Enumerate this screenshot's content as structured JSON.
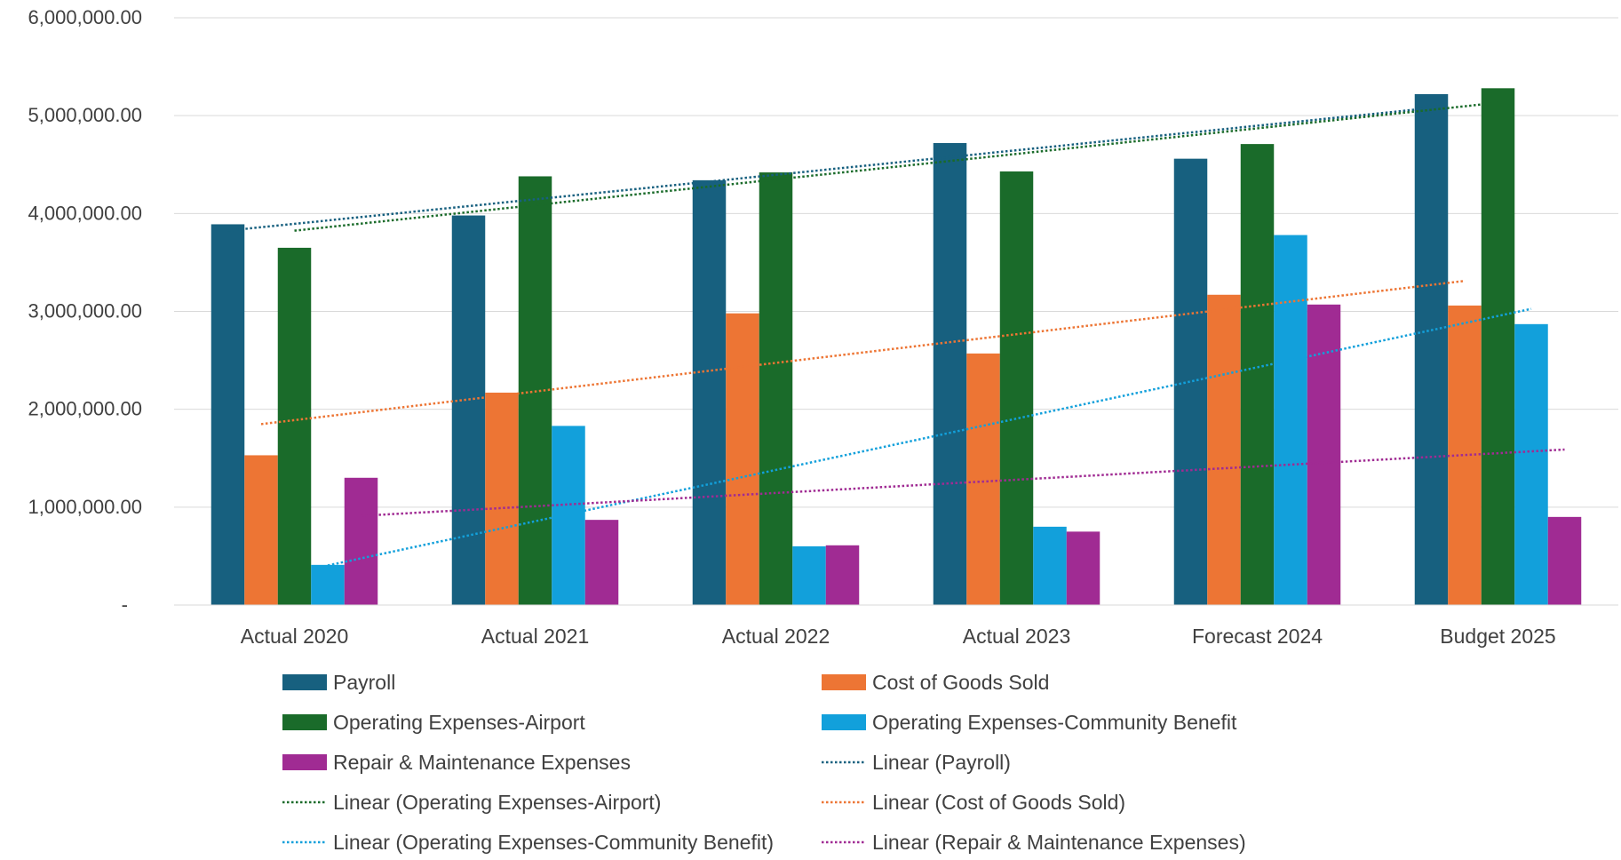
{
  "chart_data": {
    "type": "bar",
    "title": "",
    "xlabel": "",
    "ylabel": "",
    "ylim": [
      0,
      6000000
    ],
    "y_ticks": [
      0,
      1000000,
      2000000,
      3000000,
      4000000,
      5000000,
      6000000
    ],
    "y_tick_labels": [
      "-",
      "1,000,000.00",
      "2,000,000.00",
      "3,000,000.00",
      "4,000,000.00",
      "5,000,000.00",
      "6,000,000.00"
    ],
    "categories": [
      "Actual 2020",
      "Actual 2021",
      "Actual 2022",
      "Actual 2023",
      "Forecast 2024",
      "Budget 2025"
    ],
    "grid": "horizontal",
    "legend_position": "bottom",
    "series": [
      {
        "name": "Payroll",
        "color": "#17607F",
        "values": [
          3890000,
          3980000,
          4340000,
          4720000,
          4560000,
          5220000
        ]
      },
      {
        "name": "Cost of Goods Sold",
        "color": "#ED7534",
        "values": [
          1530000,
          2170000,
          2980000,
          2570000,
          3170000,
          3060000
        ]
      },
      {
        "name": "Operating Expenses-Airport",
        "color": "#1A6B2A",
        "values": [
          3650000,
          4380000,
          4420000,
          4430000,
          4710000,
          5280000
        ]
      },
      {
        "name": "Operating Expenses-Community Benefit",
        "color": "#12A0DB",
        "values": [
          410000,
          1830000,
          600000,
          800000,
          3780000,
          2870000
        ]
      },
      {
        "name": "Repair & Maintenance Expenses",
        "color": "#A02B93",
        "values": [
          1300000,
          870000,
          610000,
          750000,
          3070000,
          900000
        ]
      }
    ],
    "trendlines": [
      {
        "name": "Linear (Payroll)",
        "series": "Payroll",
        "type": "linear",
        "color": "#17607F"
      },
      {
        "name": "Linear (Operating Expenses-Airport)",
        "series": "Operating Expenses-Airport",
        "type": "linear",
        "color": "#1A6B2A"
      },
      {
        "name": "Linear (Cost of Goods Sold)",
        "series": "Cost of Goods Sold",
        "type": "linear",
        "color": "#ED7534"
      },
      {
        "name": "Linear (Operating Expenses-Community Benefit)",
        "series": "Operating Expenses-Community Benefit",
        "type": "linear",
        "color": "#12A0DB"
      },
      {
        "name": "Linear (Repair & Maintenance Expenses)",
        "series": "Repair & Maintenance Expenses",
        "type": "linear",
        "color": "#A02B93"
      }
    ],
    "legend": [
      {
        "label": "Payroll",
        "kind": "bar",
        "color": "#17607F"
      },
      {
        "label": "Cost of Goods Sold",
        "kind": "bar",
        "color": "#ED7534"
      },
      {
        "label": "Operating Expenses-Airport",
        "kind": "bar",
        "color": "#1A6B2A"
      },
      {
        "label": "Operating Expenses-Community Benefit",
        "kind": "bar",
        "color": "#12A0DB"
      },
      {
        "label": "Repair & Maintenance Expenses",
        "kind": "bar",
        "color": "#A02B93"
      },
      {
        "label": "Linear (Payroll)",
        "kind": "line",
        "color": "#17607F"
      },
      {
        "label": "Linear (Operating Expenses-Airport)",
        "kind": "line",
        "color": "#1A6B2A"
      },
      {
        "label": "Linear (Cost of Goods Sold)",
        "kind": "line",
        "color": "#ED7534"
      },
      {
        "label": "Linear (Operating Expenses-Community Benefit)",
        "kind": "line",
        "color": "#12A0DB"
      },
      {
        "label": "Linear (Repair & Maintenance Expenses)",
        "kind": "line",
        "color": "#A02B93"
      }
    ]
  }
}
